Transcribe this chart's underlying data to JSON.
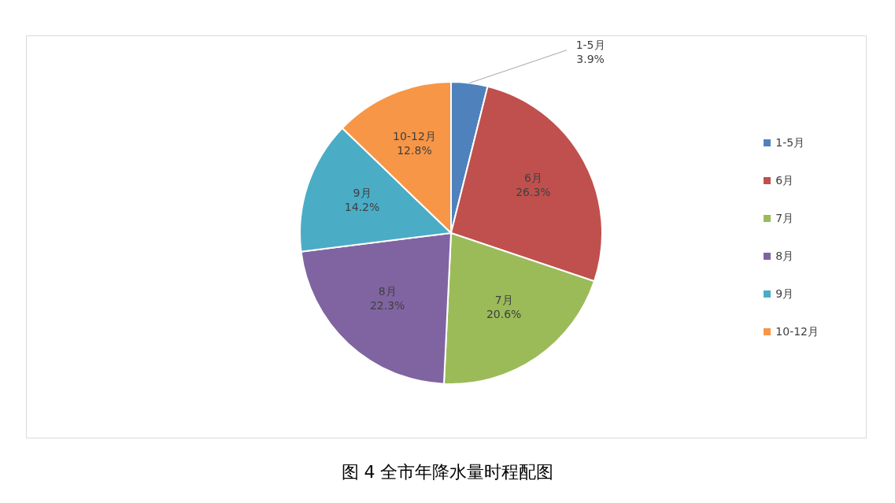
{
  "chart_data": {
    "type": "pie",
    "title": "图 4  全市年降水量时程配图",
    "categories": [
      "1-5月",
      "6月",
      "7月",
      "8月",
      "9月",
      "10-12月"
    ],
    "values": [
      3.9,
      26.3,
      20.6,
      22.3,
      14.2,
      12.8
    ],
    "value_labels": [
      "3.9%",
      "26.3%",
      "20.6%",
      "22.3%",
      "14.2%",
      "12.8%"
    ],
    "colors": [
      "#4f81bd",
      "#c0504d",
      "#9bbb59",
      "#8064a2",
      "#4bacc6",
      "#f79646"
    ],
    "legend": "right"
  }
}
